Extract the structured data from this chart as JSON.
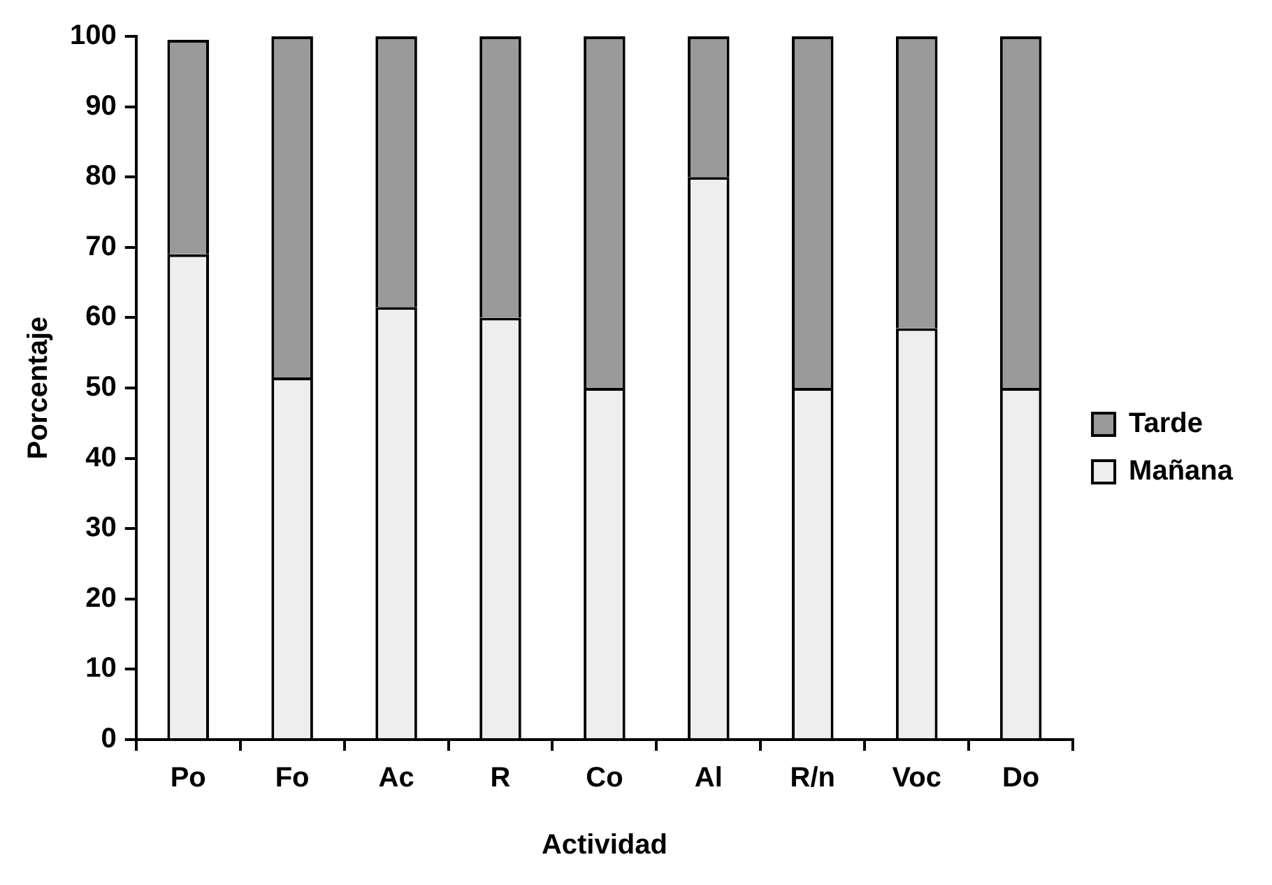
{
  "chart_data": {
    "type": "bar",
    "stacked": true,
    "xlabel": "Actividad",
    "ylabel": "Porcentaje",
    "categories": [
      "Po",
      "Fo",
      "Ac",
      "R",
      "Co",
      "Al",
      "R/n",
      "Voc",
      "Do"
    ],
    "series": [
      {
        "name": "Mañana",
        "color": "#eeeeee",
        "values": [
          69,
          51.5,
          61.5,
          60,
          50,
          80,
          50,
          58.5,
          50
        ]
      },
      {
        "name": "Tarde",
        "color": "#9a9a9a",
        "values": [
          30.5,
          48.5,
          38.5,
          40,
          50,
          20,
          50,
          41.5,
          50
        ]
      }
    ],
    "ylim": [
      0,
      100
    ],
    "yticks": [
      0,
      10,
      20,
      30,
      40,
      50,
      60,
      70,
      80,
      90,
      100
    ],
    "grid": false,
    "legend": "right"
  }
}
